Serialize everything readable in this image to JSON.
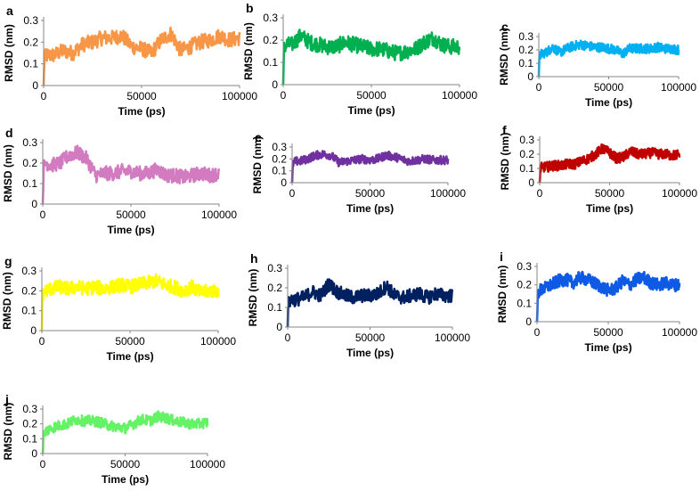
{
  "figure": {
    "x_ticks": [
      "0",
      "50000",
      "100000"
    ]
  },
  "chart_data": [
    {
      "type": "line",
      "panel": "a",
      "xlabel": "Time (ps)",
      "ylabel": "RMSD (nm)",
      "xlim": [
        0,
        100000
      ],
      "ylim": [
        0,
        0.3
      ],
      "yticks": [
        "0",
        "0.1",
        "0.2",
        "0.3"
      ],
      "color": "#F79646",
      "series": [
        {
          "name": "a",
          "x": [
            0,
            500,
            2000,
            5000,
            10000,
            15000,
            20000,
            25000,
            30000,
            35000,
            40000,
            45000,
            50000,
            55000,
            60000,
            65000,
            70000,
            75000,
            80000,
            85000,
            90000,
            95000,
            100000
          ],
          "values": [
            0.0,
            0.13,
            0.14,
            0.14,
            0.16,
            0.15,
            0.19,
            0.2,
            0.22,
            0.22,
            0.23,
            0.18,
            0.17,
            0.15,
            0.21,
            0.24,
            0.16,
            0.18,
            0.2,
            0.21,
            0.23,
            0.21,
            0.22
          ]
        }
      ]
    },
    {
      "type": "line",
      "panel": "b",
      "xlabel": "Time (ps)",
      "ylabel": "RMSD (nm)",
      "xlim": [
        0,
        100000
      ],
      "ylim": [
        0,
        0.3
      ],
      "yticks": [
        "0",
        "0.1",
        "0.2",
        "0.3"
      ],
      "color": "#00B050",
      "series": [
        {
          "name": "b",
          "x": [
            0,
            500,
            2000,
            5000,
            10000,
            15000,
            20000,
            25000,
            30000,
            35000,
            40000,
            45000,
            50000,
            55000,
            60000,
            65000,
            70000,
            75000,
            80000,
            85000,
            90000,
            95000,
            100000
          ],
          "values": [
            0.0,
            0.17,
            0.18,
            0.18,
            0.22,
            0.19,
            0.18,
            0.17,
            0.17,
            0.19,
            0.18,
            0.17,
            0.16,
            0.16,
            0.15,
            0.14,
            0.15,
            0.16,
            0.19,
            0.21,
            0.18,
            0.17,
            0.17
          ]
        }
      ]
    },
    {
      "type": "line",
      "panel": "c",
      "xlabel": "Time (ps)",
      "ylabel": "RMSD (nm)",
      "xlim": [
        0,
        100000
      ],
      "ylim": [
        0,
        0.3
      ],
      "yticks": [
        "0",
        "0.1",
        "0.2",
        "0.3"
      ],
      "color": "#00B0F0",
      "series": [
        {
          "name": "c",
          "x": [
            0,
            500,
            2000,
            5000,
            10000,
            15000,
            20000,
            25000,
            30000,
            35000,
            40000,
            45000,
            50000,
            55000,
            60000,
            65000,
            70000,
            75000,
            80000,
            85000,
            90000,
            95000,
            100000
          ],
          "values": [
            0.0,
            0.15,
            0.17,
            0.18,
            0.22,
            0.18,
            0.21,
            0.23,
            0.24,
            0.23,
            0.22,
            0.22,
            0.21,
            0.2,
            0.17,
            0.21,
            0.21,
            0.21,
            0.21,
            0.22,
            0.21,
            0.21,
            0.2
          ]
        }
      ]
    },
    {
      "type": "line",
      "panel": "d",
      "xlabel": "Time (ps)",
      "ylabel": "RMSD (nm)",
      "xlim": [
        0,
        100000
      ],
      "ylim": [
        0,
        0.3
      ],
      "yticks": [
        "0",
        "0.1",
        "0.2",
        "0.3"
      ],
      "color": "#D27BC0",
      "series": [
        {
          "name": "d",
          "x": [
            0,
            500,
            2000,
            5000,
            10000,
            15000,
            20000,
            25000,
            30000,
            35000,
            40000,
            45000,
            50000,
            55000,
            60000,
            65000,
            70000,
            75000,
            80000,
            85000,
            90000,
            95000,
            100000
          ],
          "values": [
            0.0,
            0.18,
            0.2,
            0.19,
            0.2,
            0.24,
            0.25,
            0.22,
            0.14,
            0.15,
            0.15,
            0.16,
            0.16,
            0.15,
            0.15,
            0.17,
            0.14,
            0.14,
            0.13,
            0.14,
            0.15,
            0.14,
            0.15
          ]
        }
      ]
    },
    {
      "type": "line",
      "panel": "e",
      "xlabel": "Time (ps)",
      "ylabel": "RMSD (nm)",
      "xlim": [
        0,
        100000
      ],
      "ylim": [
        0,
        0.3
      ],
      "yticks": [
        "0",
        "0.1",
        "0.2",
        "0.3"
      ],
      "color": "#7030A0",
      "series": [
        {
          "name": "e",
          "x": [
            0,
            500,
            2000,
            5000,
            10000,
            15000,
            20000,
            25000,
            30000,
            35000,
            40000,
            45000,
            50000,
            55000,
            60000,
            65000,
            70000,
            75000,
            80000,
            85000,
            90000,
            95000,
            100000
          ],
          "values": [
            0.0,
            0.16,
            0.18,
            0.18,
            0.2,
            0.23,
            0.24,
            0.23,
            0.17,
            0.18,
            0.19,
            0.2,
            0.19,
            0.2,
            0.23,
            0.22,
            0.2,
            0.18,
            0.19,
            0.2,
            0.19,
            0.19,
            0.19
          ]
        }
      ]
    },
    {
      "type": "line",
      "panel": "f",
      "xlabel": "Time (ps)",
      "ylabel": "RMSD (nm)",
      "xlim": [
        0,
        100000
      ],
      "ylim": [
        0,
        0.3
      ],
      "yticks": [
        "0",
        "0.1",
        "0.2",
        "0.3"
      ],
      "color": "#C00000",
      "series": [
        {
          "name": "f",
          "x": [
            0,
            500,
            2000,
            5000,
            10000,
            15000,
            20000,
            25000,
            30000,
            35000,
            40000,
            45000,
            50000,
            55000,
            60000,
            65000,
            70000,
            75000,
            80000,
            85000,
            90000,
            95000,
            100000
          ],
          "values": [
            0.0,
            0.1,
            0.11,
            0.11,
            0.12,
            0.12,
            0.13,
            0.13,
            0.15,
            0.17,
            0.2,
            0.24,
            0.21,
            0.17,
            0.18,
            0.22,
            0.2,
            0.2,
            0.21,
            0.2,
            0.2,
            0.19,
            0.2
          ]
        }
      ]
    },
    {
      "type": "line",
      "panel": "g",
      "xlabel": "Time (ps)",
      "ylabel": "RMSD (nm)",
      "xlim": [
        0,
        100000
      ],
      "ylim": [
        0,
        0.3
      ],
      "yticks": [
        "0",
        "0.1",
        "0.2",
        "0.3"
      ],
      "color": "#FFFF00",
      "series": [
        {
          "name": "g",
          "x": [
            0,
            500,
            2000,
            5000,
            10000,
            15000,
            20000,
            25000,
            30000,
            35000,
            40000,
            45000,
            50000,
            55000,
            60000,
            65000,
            70000,
            75000,
            80000,
            85000,
            90000,
            95000,
            100000
          ],
          "values": [
            0.0,
            0.18,
            0.2,
            0.21,
            0.22,
            0.21,
            0.22,
            0.21,
            0.22,
            0.21,
            0.22,
            0.23,
            0.22,
            0.23,
            0.24,
            0.25,
            0.23,
            0.22,
            0.2,
            0.22,
            0.19,
            0.2,
            0.2
          ]
        }
      ]
    },
    {
      "type": "line",
      "panel": "h",
      "xlabel": "Time (ps)",
      "ylabel": "RMSD (nm)",
      "xlim": [
        0,
        100000
      ],
      "ylim": [
        0,
        0.3
      ],
      "yticks": [
        "0",
        "0.1",
        "0.2",
        "0.3"
      ],
      "color": "#002060",
      "series": [
        {
          "name": "h",
          "x": [
            0,
            500,
            2000,
            5000,
            10000,
            15000,
            20000,
            25000,
            30000,
            35000,
            40000,
            45000,
            50000,
            55000,
            60000,
            65000,
            70000,
            75000,
            80000,
            85000,
            90000,
            95000,
            100000
          ],
          "values": [
            0.0,
            0.12,
            0.14,
            0.14,
            0.15,
            0.18,
            0.16,
            0.22,
            0.18,
            0.16,
            0.15,
            0.16,
            0.16,
            0.17,
            0.21,
            0.16,
            0.15,
            0.16,
            0.17,
            0.15,
            0.17,
            0.16,
            0.16
          ]
        }
      ]
    },
    {
      "type": "line",
      "panel": "i",
      "xlabel": "Time (ps)",
      "ylabel": "RMSD (nm)",
      "xlim": [
        0,
        100000
      ],
      "ylim": [
        0,
        0.3
      ],
      "yticks": [
        "0",
        "0.1",
        "0.2",
        "0.3"
      ],
      "color": "#0F5AE5",
      "series": [
        {
          "name": "i",
          "x": [
            0,
            500,
            2000,
            5000,
            10000,
            15000,
            20000,
            25000,
            30000,
            35000,
            40000,
            45000,
            50000,
            55000,
            60000,
            65000,
            70000,
            75000,
            80000,
            85000,
            90000,
            95000,
            100000
          ],
          "values": [
            0.0,
            0.15,
            0.17,
            0.18,
            0.2,
            0.22,
            0.23,
            0.21,
            0.24,
            0.23,
            0.21,
            0.19,
            0.17,
            0.18,
            0.22,
            0.2,
            0.23,
            0.24,
            0.21,
            0.2,
            0.21,
            0.2,
            0.2
          ]
        }
      ]
    },
    {
      "type": "line",
      "panel": "j",
      "xlabel": "Time (ps)",
      "ylabel": "RMSD (nm)",
      "xlim": [
        0,
        100000
      ],
      "ylim": [
        0,
        0.3
      ],
      "yticks": [
        "0",
        "0.1",
        "0.2",
        "0.3"
      ],
      "color": "#66F266",
      "series": [
        {
          "name": "j",
          "x": [
            0,
            500,
            2000,
            5000,
            10000,
            15000,
            20000,
            25000,
            30000,
            35000,
            40000,
            45000,
            50000,
            55000,
            60000,
            65000,
            70000,
            75000,
            80000,
            85000,
            90000,
            95000,
            100000
          ],
          "values": [
            0.0,
            0.13,
            0.15,
            0.17,
            0.19,
            0.2,
            0.23,
            0.22,
            0.22,
            0.21,
            0.19,
            0.18,
            0.17,
            0.2,
            0.23,
            0.22,
            0.25,
            0.24,
            0.22,
            0.21,
            0.2,
            0.2,
            0.21
          ]
        }
      ]
    }
  ]
}
